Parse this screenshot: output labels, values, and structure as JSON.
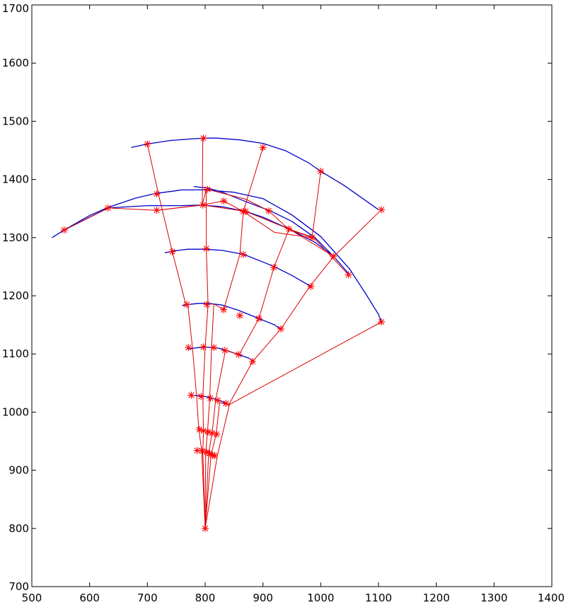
{
  "chart_data": {
    "type": "line",
    "title": "",
    "xlabel": "",
    "ylabel": "",
    "xlim": [
      500,
      1400
    ],
    "ylim": [
      700,
      1700
    ],
    "xticks": [
      500,
      600,
      700,
      800,
      900,
      1000,
      1100,
      1200,
      1300,
      1400
    ],
    "yticks": [
      700,
      800,
      900,
      1000,
      1100,
      1200,
      1300,
      1400,
      1500,
      1600,
      1700
    ],
    "grid": false,
    "legend": "none",
    "colors": {
      "arcs": "#0000c8",
      "rays": "#dd0000",
      "markers": "#ff0000",
      "axes": "#000000"
    },
    "series": [
      {
        "style": "blue-arc",
        "x": [
          672,
          700,
          740,
          780,
          800,
          820,
          860,
          900,
          940,
          980,
          1000,
          1040,
          1080,
          1100
        ],
        "y": [
          1455,
          1461,
          1467,
          1470,
          1471,
          1471,
          1468,
          1462,
          1449,
          1428,
          1414,
          1390,
          1362,
          1348
        ]
      },
      {
        "style": "blue-arc",
        "x": [
          535,
          556,
          600,
          632,
          680,
          715,
          760,
          800,
          850,
          900,
          950,
          1000,
          1050,
          1080,
          1100,
          1105
        ],
        "y": [
          1300,
          1313,
          1338,
          1352,
          1368,
          1376,
          1382,
          1382,
          1378,
          1367,
          1339,
          1302,
          1246,
          1200,
          1168,
          1155
        ]
      },
      {
        "style": "blue-arc",
        "x": [
          556,
          632,
          700,
          716,
          760,
          793,
          830,
          870,
          900,
          945,
          990,
          1022,
          1050
        ],
        "y": [
          1313,
          1351,
          1355,
          1355,
          1355,
          1356,
          1353,
          1345,
          1335,
          1315,
          1292,
          1268,
          1236
        ]
      },
      {
        "style": "blue-arc",
        "x": [
          780,
          805,
          830,
          870,
          915,
          950,
          990,
          1020
        ],
        "y": [
          1388,
          1385,
          1378,
          1362,
          1345,
          1328,
          1300,
          1270
        ]
      },
      {
        "style": "blue-arc",
        "x": [
          730,
          745,
          770,
          800,
          830,
          867,
          900,
          920,
          950,
          983
        ],
        "y": [
          1274,
          1277,
          1280,
          1280,
          1278,
          1271,
          1258,
          1250,
          1235,
          1216
        ]
      },
      {
        "style": "blue-arc",
        "x": [
          760,
          770,
          790,
          805,
          830,
          858,
          880,
          895,
          920,
          930
        ],
        "y": [
          1183,
          1185,
          1187,
          1187,
          1184,
          1175,
          1166,
          1160,
          1150,
          1143
        ]
      },
      {
        "style": "blue-arc",
        "x": [
          770,
          780,
          800,
          823,
          840,
          860,
          875,
          885
        ],
        "y": [
          1108,
          1110,
          1112,
          1110,
          1105,
          1098,
          1093,
          1087
        ]
      },
      {
        "style": "blue-arc",
        "x": [
          778,
          795,
          812,
          825,
          836
        ],
        "y": [
          1029,
          1028,
          1024,
          1020,
          1015
        ]
      },
      {
        "style": "red-ray",
        "x": [
          800,
          794,
          789,
          785,
          778,
          770,
          766,
          743,
          719,
          700
        ],
        "y": [
          800,
          934,
          970,
          1029,
          1111,
          1185,
          1187,
          1276,
          1375,
          1461
        ]
      },
      {
        "style": "red-ray",
        "x": [
          800,
          796,
          797,
          796,
          800,
          805,
          802,
          802,
          795,
          796
        ],
        "y": [
          800,
          933,
          968,
          1027,
          1112,
          1185,
          1281,
          1383,
          1356,
          1471
        ]
      },
      {
        "style": "red-ray",
        "x": [
          800,
          801,
          804,
          808,
          811,
          815,
          832,
          860,
          866,
          900
        ],
        "y": [
          800,
          931,
          966,
          1024,
          1111,
          1186,
          1176,
          1271,
          1345,
          1455
        ]
      },
      {
        "style": "red-ray",
        "x": [
          800,
          806,
          812,
          818,
          835,
          859,
          893,
          919,
          945,
          985,
          1000
        ],
        "y": [
          800,
          929,
          964,
          1020,
          1106,
          1099,
          1161,
          1249,
          1314,
          1300,
          1414
        ]
      },
      {
        "style": "red-ray",
        "x": [
          800,
          810,
          819,
          825,
          841,
          882,
          931,
          981,
          1023,
          1105
        ],
        "y": [
          800,
          926,
          962,
          1016,
          1013,
          1087,
          1143,
          1216,
          1268,
          1348
        ]
      },
      {
        "style": "red-ray",
        "x": [
          800,
          821,
          842,
          1105
        ],
        "y": [
          800,
          925,
          1013,
          1155
        ]
      },
      {
        "style": "red-ray",
        "x": [
          556,
          632,
          716,
          796,
          870,
          945,
          1022
        ],
        "y": [
          1313,
          1351,
          1347,
          1356,
          1345,
          1315,
          1268
        ]
      },
      {
        "style": "red-ray",
        "x": [
          716,
          794,
          832,
          866,
          920,
          983
        ],
        "y": [
          1347,
          1356,
          1363,
          1345,
          1309,
          1300
        ]
      },
      {
        "style": "red-ray",
        "x": [
          804,
          870,
          910,
          944,
          988,
          1048
        ],
        "y": [
          1383,
          1366,
          1346,
          1315,
          1300,
          1236
        ]
      }
    ],
    "markers": {
      "symbol": "*",
      "x": [
        800,
        786,
        795,
        803,
        808,
        813,
        816,
        790,
        797,
        805,
        812,
        820,
        776,
        793,
        809,
        822,
        836,
        771,
        797,
        815,
        834,
        858,
        882,
        768,
        803,
        832,
        860,
        893,
        931,
        743,
        802,
        866,
        919,
        983,
        700,
        797,
        900,
        1000,
        1105,
        556,
        632,
        716,
        796,
        870,
        945,
        1022,
        1048,
        716,
        804,
        832,
        866,
        910,
        985,
        1105
      ],
      "y": [
        800,
        934,
        933,
        931,
        929,
        926,
        925,
        970,
        968,
        966,
        964,
        962,
        1029,
        1027,
        1024,
        1020,
        1015,
        1111,
        1112,
        1111,
        1106,
        1099,
        1087,
        1185,
        1185,
        1176,
        1166,
        1161,
        1143,
        1276,
        1281,
        1271,
        1249,
        1216,
        1461,
        1471,
        1455,
        1414,
        1348,
        1313,
        1351,
        1347,
        1356,
        1345,
        1315,
        1268,
        1236,
        1375,
        1383,
        1363,
        1345,
        1346,
        1300,
        1155
      ]
    }
  }
}
